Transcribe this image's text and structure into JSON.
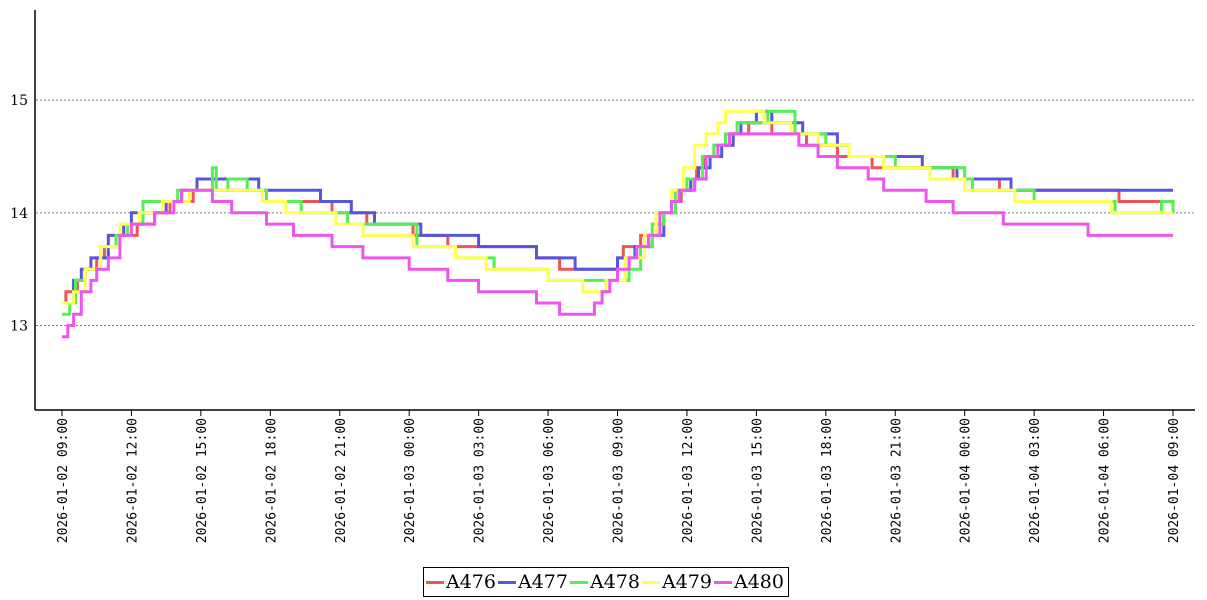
{
  "chart_data": {
    "type": "line",
    "step": true,
    "title": "",
    "xlabel": "",
    "ylabel": "",
    "ylim": [
      12.25,
      15.8
    ],
    "yticks": [
      13,
      14,
      15
    ],
    "xticks": [
      "2026-01-02 09:00",
      "2026-01-02 12:00",
      "2026-01-02 15:00",
      "2026-01-02 18:00",
      "2026-01-02 21:00",
      "2026-01-03 00:00",
      "2026-01-03 03:00",
      "2026-01-03 06:00",
      "2026-01-03 09:00",
      "2026-01-03 12:00",
      "2026-01-03 15:00",
      "2026-01-03 18:00",
      "2026-01-03 21:00",
      "2026-01-04 00:00",
      "2026-01-04 03:00",
      "2026-01-04 06:00",
      "2026-01-04 09:00"
    ],
    "grid": "horizontal-dotted",
    "legend_position": "bottom",
    "series": [
      {
        "name": "A476",
        "color": "#ee5555",
        "points": [
          [
            "2026-01-02 09:00",
            13.2
          ],
          [
            "2026-01-02 09:10",
            13.3
          ],
          [
            "2026-01-02 09:40",
            13.4
          ],
          [
            "2026-01-02 10:00",
            13.5
          ],
          [
            "2026-01-02 10:30",
            13.6
          ],
          [
            "2026-01-02 10:50",
            13.7
          ],
          [
            "2026-01-02 11:30",
            13.8
          ],
          [
            "2026-01-02 12:15",
            13.9
          ],
          [
            "2026-01-02 13:00",
            14.0
          ],
          [
            "2026-01-02 13:40",
            14.1
          ],
          [
            "2026-01-02 14:40",
            14.2
          ],
          [
            "2026-01-02 17:40",
            14.1
          ],
          [
            "2026-01-02 19:30",
            14.1
          ],
          [
            "2026-01-02 20:40",
            14.0
          ],
          [
            "2026-01-02 22:10",
            13.9
          ],
          [
            "2026-01-02 23:10",
            13.9
          ],
          [
            "2026-01-03 00:10",
            13.8
          ],
          [
            "2026-01-03 00:40",
            13.8
          ],
          [
            "2026-01-03 01:40",
            13.7
          ],
          [
            "2026-01-03 04:30",
            13.7
          ],
          [
            "2026-01-03 05:30",
            13.6
          ],
          [
            "2026-01-03 06:30",
            13.5
          ],
          [
            "2026-01-03 09:00",
            13.6
          ],
          [
            "2026-01-03 09:15",
            13.7
          ],
          [
            "2026-01-03 10:00",
            13.8
          ],
          [
            "2026-01-03 10:40",
            13.9
          ],
          [
            "2026-01-03 11:00",
            14.0
          ],
          [
            "2026-01-03 11:20",
            14.1
          ],
          [
            "2026-01-03 11:45",
            14.2
          ],
          [
            "2026-01-03 12:10",
            14.3
          ],
          [
            "2026-01-03 12:25",
            14.4
          ],
          [
            "2026-01-03 12:45",
            14.5
          ],
          [
            "2026-01-03 13:10",
            14.6
          ],
          [
            "2026-01-03 13:50",
            14.7
          ],
          [
            "2026-01-03 14:40",
            14.8
          ],
          [
            "2026-01-03 15:40",
            14.7
          ],
          [
            "2026-01-03 17:10",
            14.6
          ],
          [
            "2026-01-03 18:30",
            14.5
          ],
          [
            "2026-01-03 20:00",
            14.4
          ],
          [
            "2026-01-03 23:30",
            14.3
          ],
          [
            "2026-01-04 00:40",
            14.3
          ],
          [
            "2026-01-04 01:30",
            14.2
          ],
          [
            "2026-01-04 05:40",
            14.2
          ],
          [
            "2026-01-04 06:40",
            14.1
          ],
          [
            "2026-01-04 09:00",
            14.1
          ]
        ]
      },
      {
        "name": "A477",
        "color": "#5555dd",
        "points": [
          [
            "2026-01-02 09:00",
            13.2
          ],
          [
            "2026-01-02 09:30",
            13.4
          ],
          [
            "2026-01-02 09:50",
            13.5
          ],
          [
            "2026-01-02 10:15",
            13.6
          ],
          [
            "2026-01-02 11:00",
            13.8
          ],
          [
            "2026-01-02 11:40",
            13.9
          ],
          [
            "2026-01-02 12:00",
            14.0
          ],
          [
            "2026-01-02 13:30",
            14.1
          ],
          [
            "2026-01-02 14:10",
            14.2
          ],
          [
            "2026-01-02 14:50",
            14.3
          ],
          [
            "2026-01-02 17:30",
            14.2
          ],
          [
            "2026-01-02 20:10",
            14.1
          ],
          [
            "2026-01-02 21:20",
            14.1
          ],
          [
            "2026-01-02 21:30",
            14.0
          ],
          [
            "2026-01-02 22:30",
            13.9
          ],
          [
            "2026-01-03 00:30",
            13.9
          ],
          [
            "2026-01-03 00:30",
            13.8
          ],
          [
            "2026-01-03 01:40",
            13.8
          ],
          [
            "2026-01-03 03:00",
            13.7
          ],
          [
            "2026-01-03 05:30",
            13.6
          ],
          [
            "2026-01-03 06:20",
            13.6
          ],
          [
            "2026-01-03 07:10",
            13.5
          ],
          [
            "2026-01-03 09:00",
            13.6
          ],
          [
            "2026-01-03 09:45",
            13.7
          ],
          [
            "2026-01-03 10:30",
            13.8
          ],
          [
            "2026-01-03 11:00",
            14.0
          ],
          [
            "2026-01-03 11:30",
            14.1
          ],
          [
            "2026-01-03 11:40",
            14.2
          ],
          [
            "2026-01-03 12:10",
            14.3
          ],
          [
            "2026-01-03 12:30",
            14.4
          ],
          [
            "2026-01-03 13:00",
            14.5
          ],
          [
            "2026-01-03 13:30",
            14.6
          ],
          [
            "2026-01-03 14:00",
            14.7
          ],
          [
            "2026-01-03 14:20",
            14.8
          ],
          [
            "2026-01-03 15:00",
            14.9
          ],
          [
            "2026-01-03 15:40",
            14.8
          ],
          [
            "2026-01-03 17:00",
            14.7
          ],
          [
            "2026-01-03 17:40",
            14.7
          ],
          [
            "2026-01-03 18:30",
            14.6
          ],
          [
            "2026-01-03 19:00",
            14.5
          ],
          [
            "2026-01-03 22:10",
            14.4
          ],
          [
            "2026-01-03 23:40",
            14.3
          ],
          [
            "2026-01-04 01:30",
            14.3
          ],
          [
            "2026-01-04 02:00",
            14.2
          ],
          [
            "2026-01-04 03:00",
            14.2
          ],
          [
            "2026-01-04 09:00",
            14.2
          ]
        ]
      },
      {
        "name": "A478",
        "color": "#55ee55",
        "points": [
          [
            "2026-01-02 09:00",
            13.1
          ],
          [
            "2026-01-02 09:20",
            13.2
          ],
          [
            "2026-01-02 09:35",
            13.4
          ],
          [
            "2026-01-02 10:00",
            13.5
          ],
          [
            "2026-01-02 10:40",
            13.7
          ],
          [
            "2026-01-02 11:20",
            13.8
          ],
          [
            "2026-01-02 11:50",
            13.9
          ],
          [
            "2026-01-02 12:30",
            14.1
          ],
          [
            "2026-01-02 14:00",
            14.2
          ],
          [
            "2026-01-02 15:30",
            14.4
          ],
          [
            "2026-01-02 15:40",
            14.2
          ],
          [
            "2026-01-02 16:10",
            14.3
          ],
          [
            "2026-01-02 17:00",
            14.2
          ],
          [
            "2026-01-02 17:50",
            14.1
          ],
          [
            "2026-01-02 19:20",
            14.0
          ],
          [
            "2026-01-02 21:20",
            13.9
          ],
          [
            "2026-01-02 22:30",
            13.9
          ],
          [
            "2026-01-03 00:20",
            13.7
          ],
          [
            "2026-01-03 02:00",
            13.6
          ],
          [
            "2026-01-03 03:40",
            13.5
          ],
          [
            "2026-01-03 06:00",
            13.4
          ],
          [
            "2026-01-03 08:00",
            13.4
          ],
          [
            "2026-01-03 09:30",
            13.5
          ],
          [
            "2026-01-03 10:00",
            13.7
          ],
          [
            "2026-01-03 10:30",
            13.9
          ],
          [
            "2026-01-03 11:00",
            14.0
          ],
          [
            "2026-01-03 11:30",
            14.2
          ],
          [
            "2026-01-03 12:00",
            14.3
          ],
          [
            "2026-01-03 12:40",
            14.5
          ],
          [
            "2026-01-03 13:10",
            14.6
          ],
          [
            "2026-01-03 13:40",
            14.7
          ],
          [
            "2026-01-03 14:10",
            14.8
          ],
          [
            "2026-01-03 15:30",
            14.9
          ],
          [
            "2026-01-03 16:40",
            14.7
          ],
          [
            "2026-01-03 18:00",
            14.6
          ],
          [
            "2026-01-03 19:00",
            14.5
          ],
          [
            "2026-01-03 21:00",
            14.4
          ],
          [
            "2026-01-03 22:30",
            14.4
          ],
          [
            "2026-01-04 00:00",
            14.3
          ],
          [
            "2026-01-04 00:20",
            14.2
          ],
          [
            "2026-01-04 03:00",
            14.1
          ],
          [
            "2026-01-04 05:30",
            14.1
          ],
          [
            "2026-01-04 06:30",
            14.0
          ],
          [
            "2026-01-04 08:30",
            14.1
          ],
          [
            "2026-01-04 09:00",
            14.0
          ]
        ]
      },
      {
        "name": "A479",
        "color": "#ffff55",
        "points": [
          [
            "2026-01-02 09:00",
            13.2
          ],
          [
            "2026-01-02 09:30",
            13.3
          ],
          [
            "2026-01-02 10:00",
            13.5
          ],
          [
            "2026-01-02 10:40",
            13.7
          ],
          [
            "2026-01-02 11:30",
            13.9
          ],
          [
            "2026-01-02 12:20",
            14.0
          ],
          [
            "2026-01-02 13:20",
            14.1
          ],
          [
            "2026-01-02 14:30",
            14.2
          ],
          [
            "2026-01-02 16:40",
            14.2
          ],
          [
            "2026-01-02 17:40",
            14.1
          ],
          [
            "2026-01-02 18:40",
            14.0
          ],
          [
            "2026-01-02 20:50",
            13.9
          ],
          [
            "2026-01-02 22:00",
            13.8
          ],
          [
            "2026-01-03 00:10",
            13.7
          ],
          [
            "2026-01-03 02:00",
            13.6
          ],
          [
            "2026-01-03 03:20",
            13.5
          ],
          [
            "2026-01-03 06:00",
            13.4
          ],
          [
            "2026-01-03 07:30",
            13.3
          ],
          [
            "2026-01-03 08:30",
            13.4
          ],
          [
            "2026-01-03 09:20",
            13.6
          ],
          [
            "2026-01-03 10:10",
            13.8
          ],
          [
            "2026-01-03 10:40",
            14.0
          ],
          [
            "2026-01-03 11:20",
            14.2
          ],
          [
            "2026-01-03 11:50",
            14.4
          ],
          [
            "2026-01-03 12:20",
            14.6
          ],
          [
            "2026-01-03 12:50",
            14.7
          ],
          [
            "2026-01-03 13:20",
            14.8
          ],
          [
            "2026-01-03 13:40",
            14.9
          ],
          [
            "2026-01-03 15:20",
            14.8
          ],
          [
            "2026-01-03 16:30",
            14.7
          ],
          [
            "2026-01-03 17:40",
            14.6
          ],
          [
            "2026-01-03 19:00",
            14.5
          ],
          [
            "2026-01-03 20:30",
            14.4
          ],
          [
            "2026-01-03 22:30",
            14.3
          ],
          [
            "2026-01-04 00:00",
            14.2
          ],
          [
            "2026-01-04 02:10",
            14.1
          ],
          [
            "2026-01-04 05:40",
            14.1
          ],
          [
            "2026-01-04 06:20",
            14.0
          ],
          [
            "2026-01-04 09:00",
            14.0
          ]
        ]
      },
      {
        "name": "A480",
        "color": "#ee55ee",
        "points": [
          [
            "2026-01-02 09:00",
            12.9
          ],
          [
            "2026-01-02 09:15",
            13.0
          ],
          [
            "2026-01-02 09:30",
            13.1
          ],
          [
            "2026-01-02 09:50",
            13.3
          ],
          [
            "2026-01-02 10:15",
            13.4
          ],
          [
            "2026-01-02 10:30",
            13.5
          ],
          [
            "2026-01-02 11:00",
            13.6
          ],
          [
            "2026-01-02 11:30",
            13.8
          ],
          [
            "2026-01-02 12:00",
            13.9
          ],
          [
            "2026-01-02 13:00",
            14.0
          ],
          [
            "2026-01-02 13:50",
            14.1
          ],
          [
            "2026-01-02 14:10",
            14.2
          ],
          [
            "2026-01-02 15:30",
            14.1
          ],
          [
            "2026-01-02 16:20",
            14.0
          ],
          [
            "2026-01-02 17:50",
            13.9
          ],
          [
            "2026-01-02 19:00",
            13.8
          ],
          [
            "2026-01-02 20:40",
            13.7
          ],
          [
            "2026-01-02 22:00",
            13.6
          ],
          [
            "2026-01-03 00:00",
            13.5
          ],
          [
            "2026-01-03 01:40",
            13.4
          ],
          [
            "2026-01-03 03:00",
            13.3
          ],
          [
            "2026-01-03 05:30",
            13.2
          ],
          [
            "2026-01-03 06:30",
            13.1
          ],
          [
            "2026-01-03 08:00",
            13.2
          ],
          [
            "2026-01-03 08:20",
            13.3
          ],
          [
            "2026-01-03 08:40",
            13.4
          ],
          [
            "2026-01-03 09:00",
            13.5
          ],
          [
            "2026-01-03 09:30",
            13.6
          ],
          [
            "2026-01-03 09:50",
            13.7
          ],
          [
            "2026-01-03 10:20",
            13.8
          ],
          [
            "2026-01-03 10:50",
            14.0
          ],
          [
            "2026-01-03 11:20",
            14.1
          ],
          [
            "2026-01-03 11:40",
            14.2
          ],
          [
            "2026-01-03 12:20",
            14.3
          ],
          [
            "2026-01-03 12:50",
            14.5
          ],
          [
            "2026-01-03 13:20",
            14.6
          ],
          [
            "2026-01-03 13:50",
            14.7
          ],
          [
            "2026-01-03 15:40",
            14.7
          ],
          [
            "2026-01-03 16:50",
            14.6
          ],
          [
            "2026-01-03 17:40",
            14.5
          ],
          [
            "2026-01-03 18:30",
            14.4
          ],
          [
            "2026-01-03 19:50",
            14.3
          ],
          [
            "2026-01-03 20:30",
            14.2
          ],
          [
            "2026-01-03 22:20",
            14.1
          ],
          [
            "2026-01-03 23:30",
            14.0
          ],
          [
            "2026-01-04 01:40",
            13.9
          ],
          [
            "2026-01-04 03:40",
            13.9
          ],
          [
            "2026-01-04 05:20",
            13.8
          ],
          [
            "2026-01-04 09:00",
            13.8
          ]
        ]
      }
    ]
  }
}
